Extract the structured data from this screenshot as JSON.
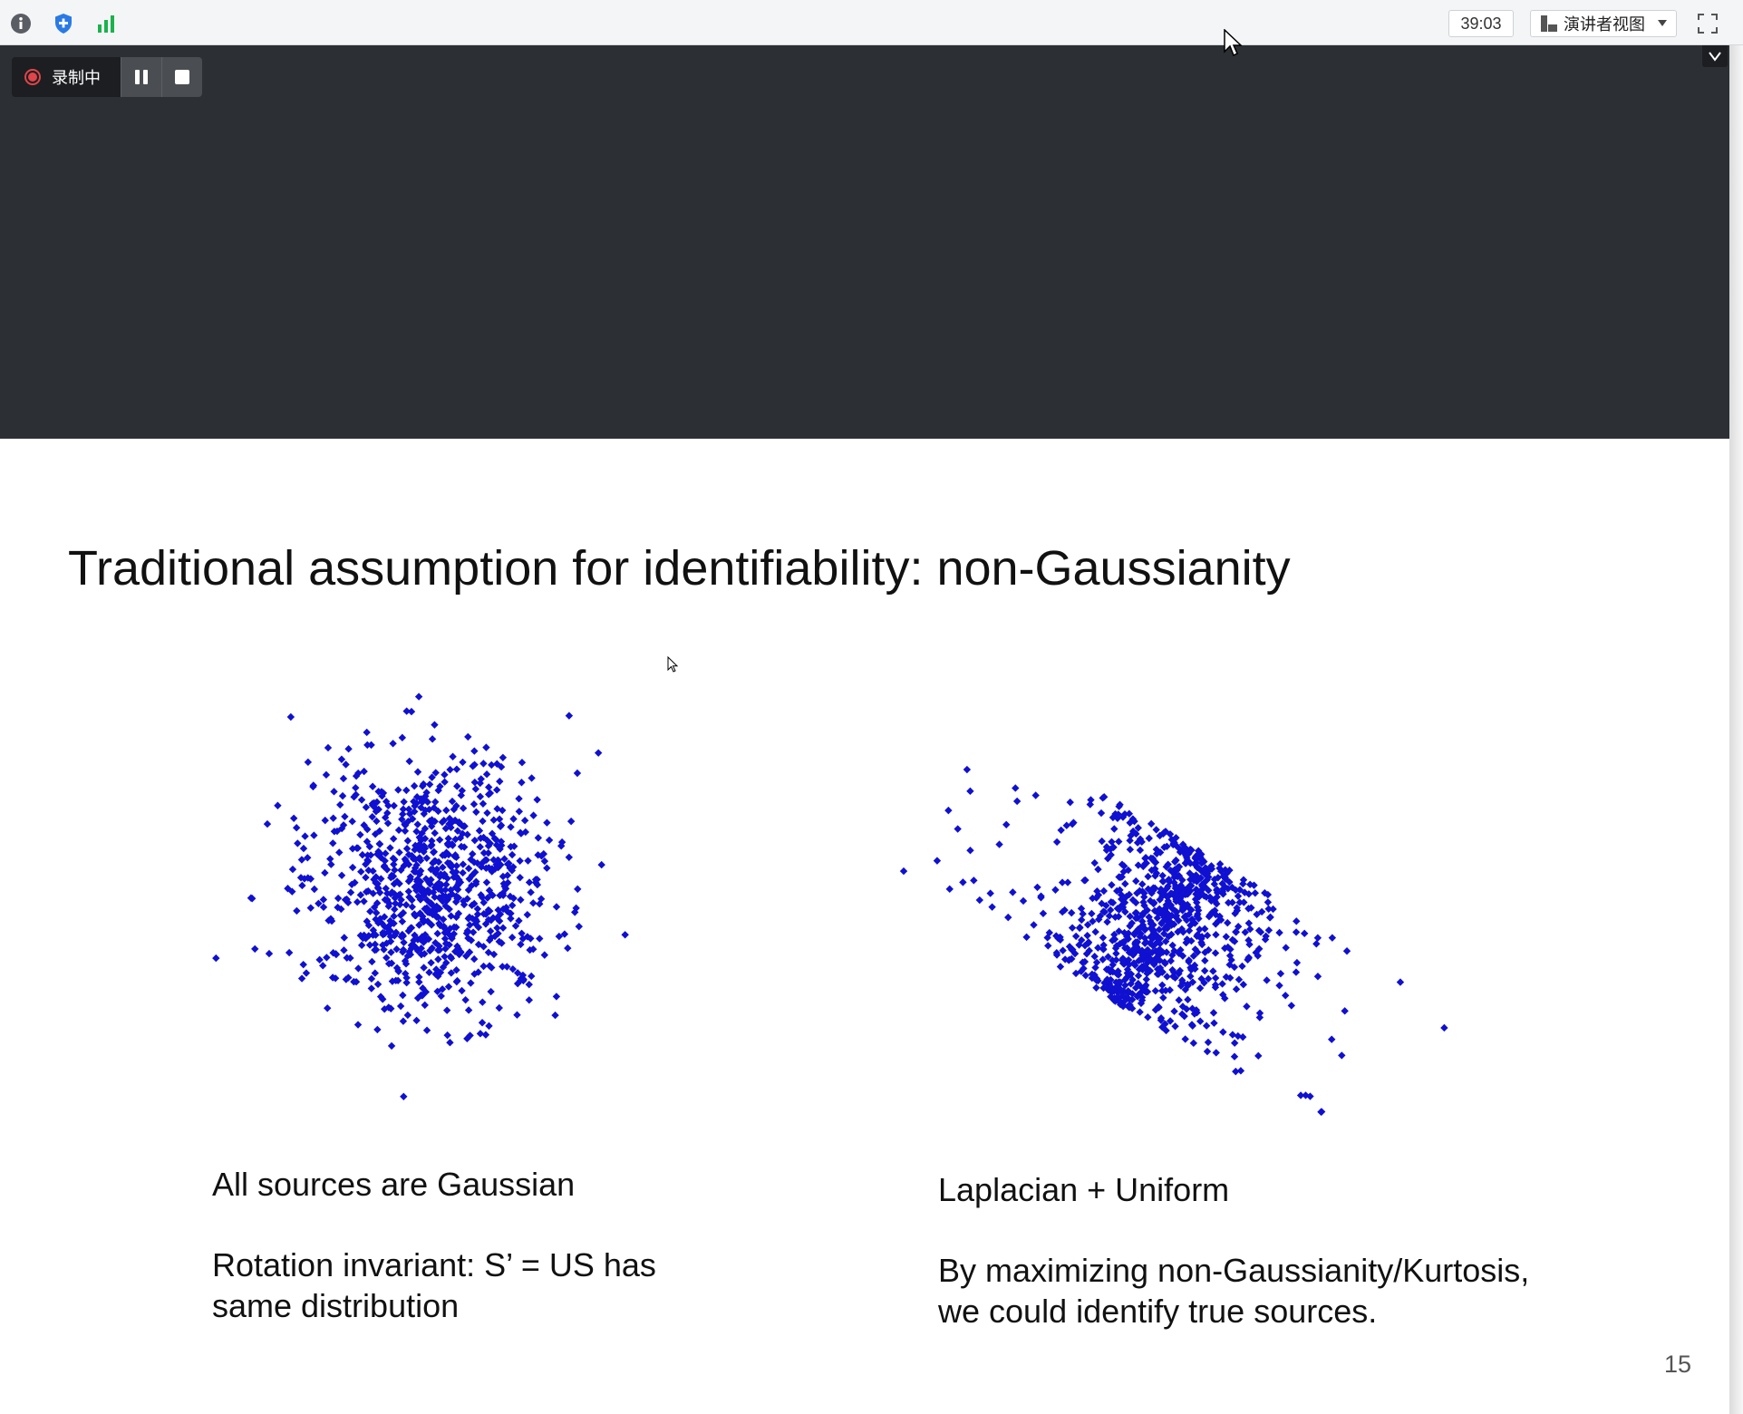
{
  "toolbar": {
    "icons": [
      "info-icon",
      "shield-icon",
      "bar-chart-icon"
    ],
    "timer": "39:03",
    "view_mode": "演讲者视图",
    "fullscreen_icon": "fullscreen-icon"
  },
  "recording": {
    "status_label": "录制中",
    "pause_icon": "pause-icon",
    "stop_icon": "stop-icon",
    "collapse_icon": "chevron-down-icon"
  },
  "slide": {
    "title": "Traditional assumption for identifiability: non-Gaussianity",
    "left_panel": {
      "heading": "All sources are Gaussian",
      "body_line1": "Rotation invariant: S’ = US has",
      "body_line2": "same distribution"
    },
    "right_panel": {
      "heading": "Laplacian + Uniform",
      "body_line1": "By maximizing non-Gaussianity/Kurtosis,",
      "body_line2": "we could identify true sources."
    },
    "page_number": "15"
  },
  "colors": {
    "point_color": "#1010d0",
    "dark_bg": "#2c2f33",
    "record_red": "#e0454a"
  }
}
